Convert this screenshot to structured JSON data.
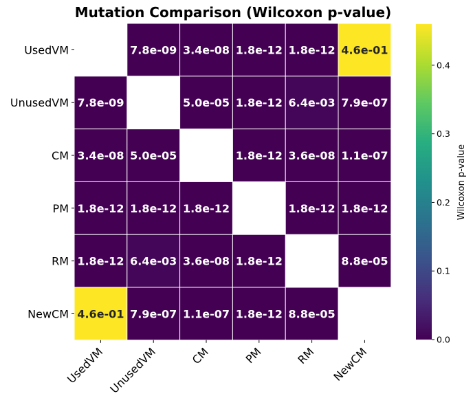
{
  "chart_data": {
    "type": "heatmap",
    "title": "Mutation Comparison (Wilcoxon p-value)",
    "rows": [
      "UsedVM",
      "UnusedVM",
      "CM",
      "PM",
      "RM",
      "NewCM"
    ],
    "columns": [
      "UsedVM",
      "UnusedVM",
      "CM",
      "PM",
      "RM",
      "NewCM"
    ],
    "values": [
      [
        null,
        7.8e-09,
        3.4e-08,
        1.8e-12,
        1.8e-12,
        0.46
      ],
      [
        7.8e-09,
        null,
        5e-05,
        1.8e-12,
        0.0064,
        7.9e-07
      ],
      [
        3.4e-08,
        5e-05,
        null,
        1.8e-12,
        3.6e-08,
        1.1e-07
      ],
      [
        1.8e-12,
        1.8e-12,
        1.8e-12,
        null,
        1.8e-12,
        1.8e-12
      ],
      [
        1.8e-12,
        0.0064,
        3.6e-08,
        1.8e-12,
        null,
        8.8e-05
      ],
      [
        0.46,
        7.9e-07,
        1.1e-07,
        1.8e-12,
        8.8e-05,
        null
      ]
    ],
    "annotations": [
      [
        "",
        "7.8e-09",
        "3.4e-08",
        "1.8e-12",
        "1.8e-12",
        "4.6e-01"
      ],
      [
        "7.8e-09",
        "",
        "5.0e-05",
        "1.8e-12",
        "6.4e-03",
        "7.9e-07"
      ],
      [
        "3.4e-08",
        "5.0e-05",
        "",
        "1.8e-12",
        "3.6e-08",
        "1.1e-07"
      ],
      [
        "1.8e-12",
        "1.8e-12",
        "1.8e-12",
        "",
        "1.8e-12",
        "1.8e-12"
      ],
      [
        "1.8e-12",
        "6.4e-03",
        "3.6e-08",
        "1.8e-12",
        "",
        "8.8e-05"
      ],
      [
        "4.6e-01",
        "7.9e-07",
        "1.1e-07",
        "1.8e-12",
        "8.8e-05",
        ""
      ]
    ],
    "colorbar": {
      "label": "Wilcoxon p-value",
      "range": [
        0,
        0.46
      ],
      "ticks": [
        0.0,
        0.1,
        0.2,
        0.3,
        0.4
      ],
      "tick_labels": [
        "0.0",
        "0.1",
        "0.2",
        "0.3",
        "0.4"
      ],
      "colormap": "viridis"
    }
  }
}
